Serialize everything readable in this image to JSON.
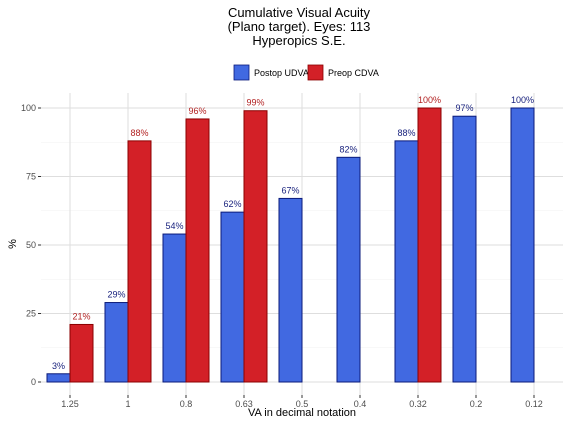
{
  "chart_data": {
    "type": "bar",
    "title_lines": [
      "Cumulative Visual Acuity",
      "(Plano target). Eyes: 113",
      "Hyperopics S.E."
    ],
    "xlabel": "VA in decimal notation",
    "ylabel": "%",
    "ylim": [
      0,
      105
    ],
    "yticks": [
      0,
      25,
      50,
      75,
      100
    ],
    "grid": true,
    "legend_position": "top",
    "categories": [
      "1.25",
      "1",
      "0.8",
      "0.63",
      "0.5",
      "0.4",
      "0.32",
      "0.2",
      "0.12"
    ],
    "series": [
      {
        "name": "Postop UDVA",
        "color": "#4169E1",
        "edge": "#0A1A7A",
        "label_color": "#1A237E",
        "values": [
          3,
          29,
          54,
          62,
          67,
          82,
          88,
          97,
          100
        ],
        "labels": [
          "3%",
          "29%",
          "54%",
          "62%",
          "67%",
          "82%",
          "88%",
          "97%",
          "100%"
        ]
      },
      {
        "name": "Preop CDVA",
        "color": "#D32027",
        "edge": "#8B0000",
        "label_color": "#B22222",
        "values": [
          21,
          88,
          96,
          99,
          null,
          null,
          100,
          null,
          null
        ],
        "labels": [
          "21%",
          "88%",
          "96%",
          "99%",
          null,
          null,
          "100%",
          null,
          null
        ]
      }
    ]
  }
}
